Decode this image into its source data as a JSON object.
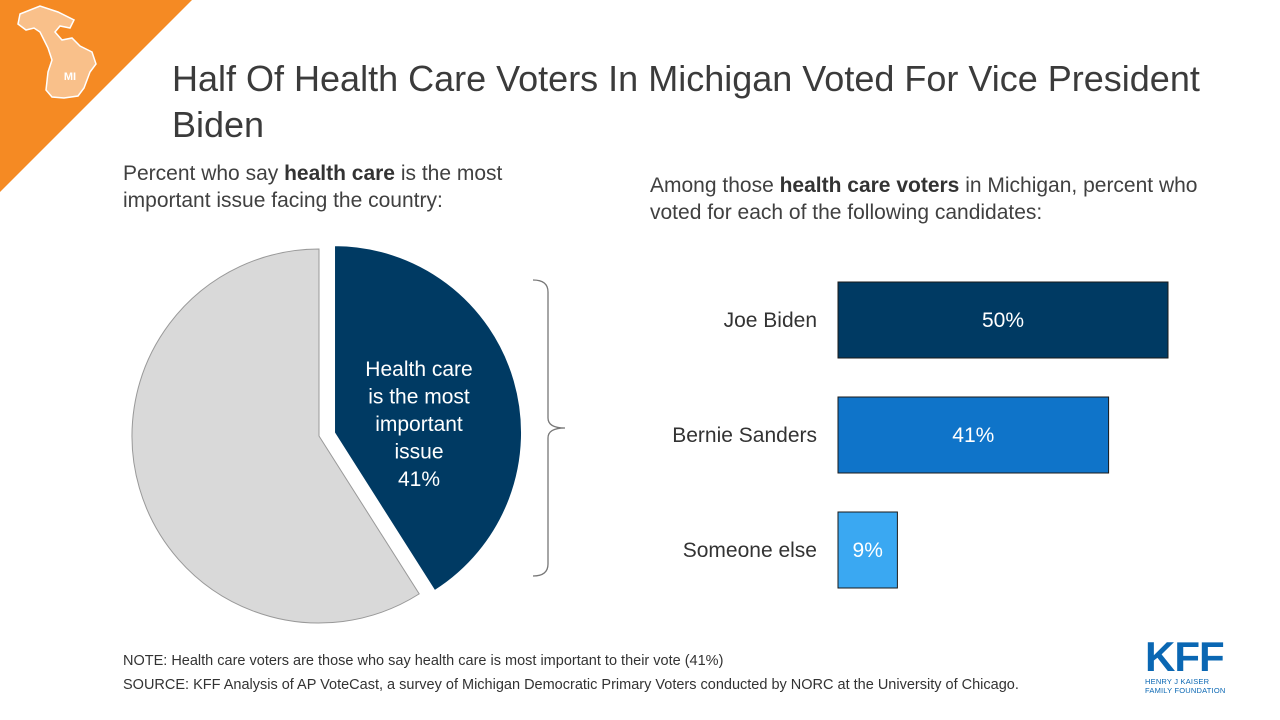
{
  "header": {
    "state_label": "MI",
    "title": "Half Of Health Care Voters In Michigan Voted For Vice President Biden"
  },
  "left_subtitle": {
    "prefix": "Percent who say ",
    "bold": "health care",
    "suffix": " is the most important issue facing the country:"
  },
  "right_subtitle": {
    "prefix": "Among those ",
    "bold": "health care voters",
    "suffix": " in Michigan, percent who voted for each of the following candidates:"
  },
  "footer": {
    "note": "NOTE: Health care voters are those who say health care is most important to their vote (41%)",
    "source": "SOURCE: KFF Analysis of AP VoteCast, a survey of Michigan Democratic Primary Voters conducted by NORC at the University of Chicago."
  },
  "logo": {
    "main": "KFF",
    "line1": "HENRY J KAISER",
    "line2": "FAMILY FOUNDATION"
  },
  "colors": {
    "orange": "#f58a23",
    "dark_navy": "#003a63",
    "mid_blue": "#0f74c9",
    "light_blue": "#3aa8f2",
    "pie_gray": "#d9d9d9"
  },
  "chart_data": [
    {
      "type": "pie",
      "slices": [
        {
          "label_lines": [
            "Health care",
            "is the most",
            "important",
            "issue"
          ],
          "value": 41,
          "value_label": "41%",
          "color": "#003a63",
          "exploded": true
        },
        {
          "value": 59,
          "color": "#d9d9d9"
        }
      ]
    },
    {
      "type": "bar",
      "orientation": "horizontal",
      "categories": [
        "Joe Biden",
        "Bernie Sanders",
        "Someone else"
      ],
      "values": [
        50,
        41,
        9
      ],
      "value_labels": [
        "50%",
        "41%",
        "9%"
      ],
      "colors": [
        "#003a63",
        "#0f74c9",
        "#3aa8f2"
      ],
      "xlim": [
        0,
        60
      ]
    }
  ]
}
